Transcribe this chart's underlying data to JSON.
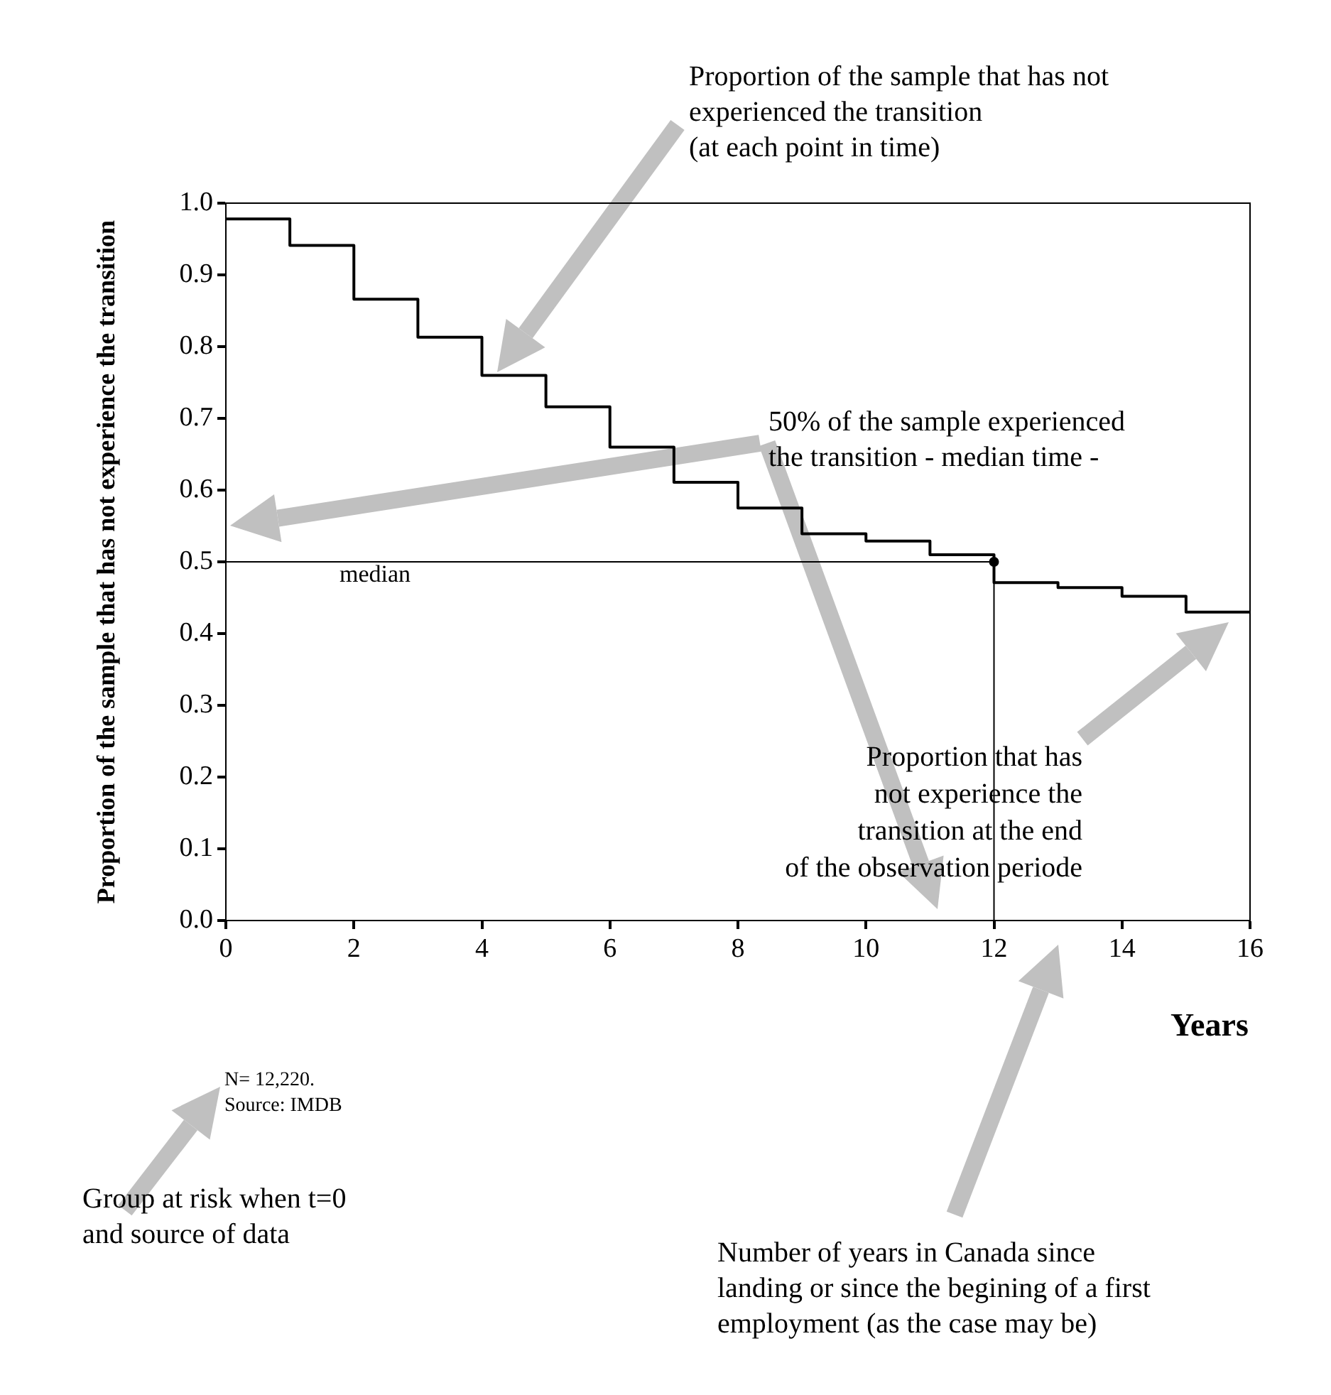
{
  "chart_data": {
    "type": "step",
    "xlabel": "Years",
    "ylabel": "Proportion of the sample that has not experience the transition",
    "x": [
      0,
      1,
      2,
      3,
      4,
      5,
      6,
      7,
      8,
      9,
      10,
      11,
      12,
      13,
      14,
      15,
      16
    ],
    "series": [
      {
        "color": "#000000",
        "values": [
          0.978,
          0.941,
          0.866,
          0.813,
          0.76,
          0.716,
          0.66,
          0.611,
          0.575,
          0.539,
          0.529,
          0.51,
          0.471,
          0.464,
          0.452,
          0.43,
          0.43
        ]
      },
      {
        "type": "scatter",
        "color": "#000000",
        "marker": "circle",
        "x": [
          12
        ],
        "values": [
          0.5
        ]
      }
    ],
    "xlim": [
      0,
      16
    ],
    "xticks": [
      0,
      2,
      4,
      6,
      8,
      10,
      12,
      14,
      16
    ],
    "ylim": [
      0,
      1
    ],
    "yticks": [
      {
        "value": 0,
        "label": "0.0"
      },
      0.1,
      0.2,
      0.3,
      0.4,
      0.5,
      0.6,
      0.7,
      0.8,
      0.9,
      {
        "value": 1,
        "label": "1.0"
      }
    ],
    "ref_lines": [
      {
        "axis": "y",
        "value": 0.5,
        "label": "median",
        "color": "#000000"
      },
      {
        "axis": "x",
        "value": 12,
        "color": "#000000"
      }
    ],
    "grid": false,
    "legend": false,
    "annotations": [
      "Proportion of the sample that has not\nexperienced the transition\n(at each point in time)",
      "50% of the sample experienced\nthe transition - median time -",
      "Proportion that has\nnot experience the\ntransition at the end\nof the observation periode",
      "Number of years in Canada since\nlanding or since the begining of a first\nemployment (as the case may be)",
      "Group at risk when t=0\nand source of data",
      "N= 12,220.\nSource: IMDB"
    ]
  }
}
